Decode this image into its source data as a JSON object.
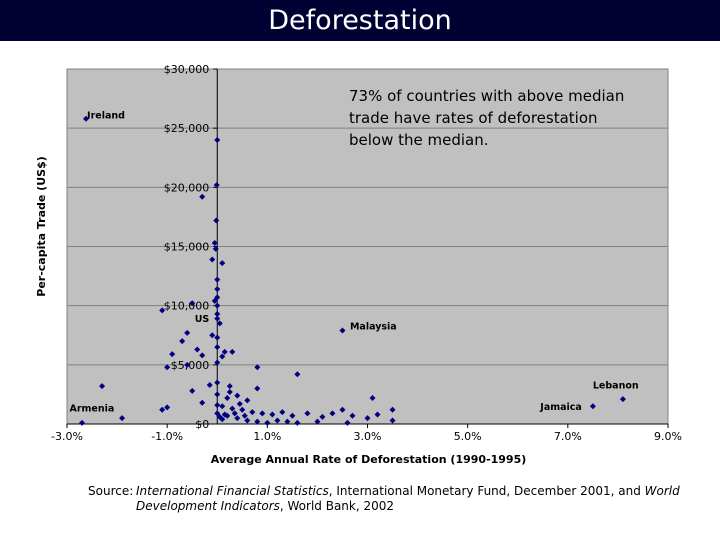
{
  "slide": {
    "title": "Deforestation"
  },
  "source": {
    "label": "Source:",
    "part1_italic": "International Financial Statistics",
    "part2": ", International Monetary Fund, December 2001, and ",
    "part3_italic": "World Development Indicators",
    "part4": ", World Bank, 2002"
  },
  "colors": {
    "plot_background": "#c0c0c0",
    "marker": "#000080",
    "title_bar": "#000033",
    "gridline": "#808080"
  },
  "chart_data": {
    "type": "scatter",
    "title": "",
    "xlabel": "Average Annual Rate of Deforestation (1990-1995)",
    "ylabel": "Per-capita Trade (US$)",
    "xlim": [
      -3.0,
      9.0
    ],
    "ylim": [
      0,
      30000
    ],
    "x_ticks": [
      -3,
      -1,
      1,
      3,
      5,
      7,
      9
    ],
    "x_tick_labels": [
      "-3.0%",
      "-1.0%",
      "1.0%",
      "3.0%",
      "5.0%",
      "7.0%",
      "9.0%"
    ],
    "y_ticks": [
      0,
      5000,
      10000,
      15000,
      20000,
      25000,
      30000
    ],
    "y_tick_labels": [
      "$0",
      "$5,000",
      "$10,000",
      "$15,000",
      "$20,000",
      "$25,000",
      "$30,000"
    ],
    "grid": "horizontal",
    "annotation": "73% of countries with above median trade have rates of deforestation below the median.",
    "point_labels": [
      {
        "text": "Ireland",
        "x": -2.6,
        "y": 25800
      },
      {
        "text": "US",
        "x": -0.45,
        "y": 8600
      },
      {
        "text": "Malaysia",
        "x": 2.65,
        "y": 8000
      },
      {
        "text": "Lebanon",
        "x": 7.5,
        "y": 3000
      },
      {
        "text": "Jamaica",
        "x": 6.45,
        "y": 1200
      },
      {
        "text": "Armenia",
        "x": -2.95,
        "y": 1050
      }
    ],
    "points": [
      [
        -2.62,
        25800
      ],
      [
        0.0,
        24000
      ],
      [
        -0.01,
        20200
      ],
      [
        -0.3,
        19200
      ],
      [
        -0.02,
        17200
      ],
      [
        -0.05,
        15300
      ],
      [
        -0.03,
        14800
      ],
      [
        -0.1,
        13900
      ],
      [
        0.1,
        13600
      ],
      [
        0.0,
        12200
      ],
      [
        0.0,
        11400
      ],
      [
        0.0,
        10700
      ],
      [
        -0.05,
        10400
      ],
      [
        -0.5,
        10200
      ],
      [
        0.0,
        10000
      ],
      [
        -1.1,
        9600
      ],
      [
        0.0,
        9300
      ],
      [
        0.0,
        8900
      ],
      [
        0.05,
        8500
      ],
      [
        -0.6,
        7700
      ],
      [
        -0.1,
        7500
      ],
      [
        0.0,
        7300
      ],
      [
        -0.7,
        7000
      ],
      [
        -0.4,
        6300
      ],
      [
        0.0,
        6500
      ],
      [
        0.15,
        6100
      ],
      [
        0.3,
        6100
      ],
      [
        -0.9,
        5900
      ],
      [
        -0.3,
        5800
      ],
      [
        0.1,
        5700
      ],
      [
        0.0,
        5200
      ],
      [
        -0.6,
        5000
      ],
      [
        -1.0,
        4800
      ],
      [
        0.8,
        4800
      ],
      [
        1.6,
        4200
      ],
      [
        -0.15,
        3300
      ],
      [
        0.25,
        3200
      ],
      [
        0.8,
        3000
      ],
      [
        -0.5,
        2800
      ],
      [
        0.0,
        2500
      ],
      [
        0.2,
        2200
      ],
      [
        0.4,
        2400
      ],
      [
        0.6,
        2000
      ],
      [
        -0.3,
        1800
      ],
      [
        0.0,
        1600
      ],
      [
        0.1,
        1500
      ],
      [
        0.3,
        1300
      ],
      [
        0.5,
        1200
      ],
      [
        0.7,
        1000
      ],
      [
        0.9,
        900
      ],
      [
        1.1,
        800
      ],
      [
        1.3,
        1000
      ],
      [
        1.5,
        700
      ],
      [
        1.8,
        900
      ],
      [
        2.1,
        600
      ],
      [
        2.3,
        900
      ],
      [
        2.5,
        1200
      ],
      [
        2.7,
        700
      ],
      [
        3.0,
        500
      ],
      [
        3.2,
        800
      ],
      [
        3.5,
        1200
      ],
      [
        3.1,
        2200
      ],
      [
        -1.0,
        1400
      ],
      [
        -1.1,
        1200
      ],
      [
        0.0,
        900
      ],
      [
        0.2,
        700
      ],
      [
        0.4,
        500
      ],
      [
        0.6,
        300
      ],
      [
        0.8,
        200
      ],
      [
        1.0,
        100
      ],
      [
        1.2,
        300
      ],
      [
        1.4,
        200
      ],
      [
        1.6,
        100
      ],
      [
        2.0,
        200
      ],
      [
        2.6,
        100
      ],
      [
        3.5,
        300
      ],
      [
        0.05,
        600
      ],
      [
        0.15,
        800
      ],
      [
        0.35,
        900
      ],
      [
        0.55,
        700
      ],
      [
        2.5,
        7900
      ],
      [
        7.5,
        1500
      ],
      [
        8.1,
        2100
      ],
      [
        -2.7,
        100
      ],
      [
        -1.9,
        500
      ],
      [
        -2.3,
        3200
      ],
      [
        0.0,
        3500
      ],
      [
        0.25,
        2700
      ],
      [
        0.45,
        1700
      ],
      [
        0.1,
        400
      ]
    ]
  }
}
